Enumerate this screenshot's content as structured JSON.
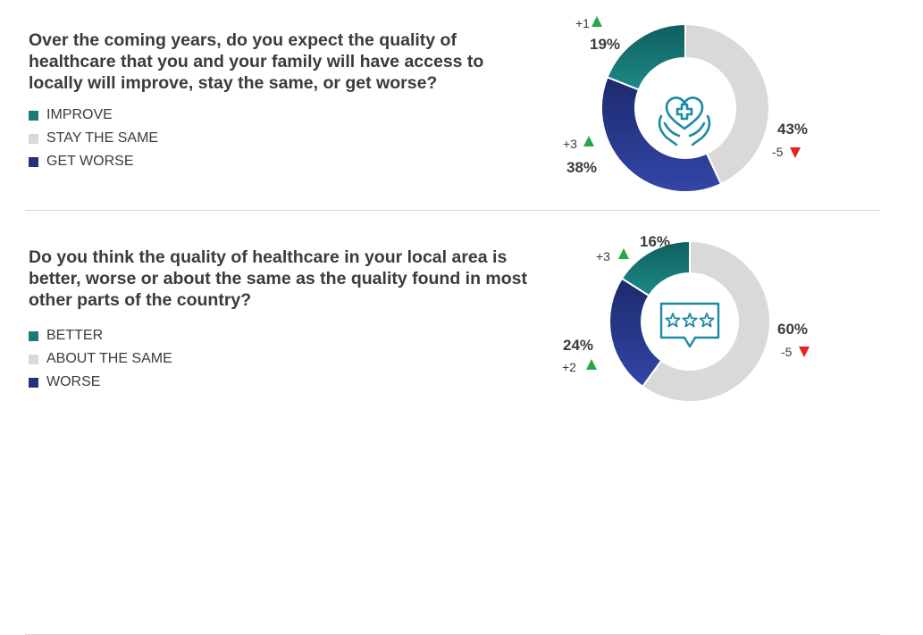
{
  "colors": {
    "teal": "#1a7a78",
    "grey": "#d9d9d9",
    "navy": "#23317a",
    "up": "#27a847",
    "down": "#e8201e",
    "icon": "#1b8aa3"
  },
  "chart_data": [
    {
      "type": "pie",
      "question": "Over the coming years, do you expect the quality of healthcare that you and your family will have access to locally will improve, stay the same, or get worse?",
      "icon": "heart-hands-cross-icon",
      "slices": [
        {
          "key": "improve",
          "label": "IMPROVE",
          "value": 19,
          "pct_label": "19%",
          "change": "+1",
          "direction": "up"
        },
        {
          "key": "same",
          "label": "STAY THE SAME",
          "value": 43,
          "pct_label": "43%",
          "change": "-5",
          "direction": "down"
        },
        {
          "key": "worse",
          "label": "GET WORSE",
          "value": 38,
          "pct_label": "38%",
          "change": "+3",
          "direction": "up"
        }
      ]
    },
    {
      "type": "pie",
      "question": "Do you think the quality of healthcare in your local area is better, worse or about the same as the quality found in most other parts of the country?",
      "icon": "three-star-rating-icon",
      "slices": [
        {
          "key": "better",
          "label": "BETTER",
          "value": 16,
          "pct_label": "16%",
          "change": "+3",
          "direction": "up"
        },
        {
          "key": "same",
          "label": "ABOUT THE SAME",
          "value": 60,
          "pct_label": "60%",
          "change": "-5",
          "direction": "down"
        },
        {
          "key": "worse",
          "label": "WORSE",
          "value": 24,
          "pct_label": "24%",
          "change": "+2",
          "direction": "up"
        }
      ]
    }
  ]
}
